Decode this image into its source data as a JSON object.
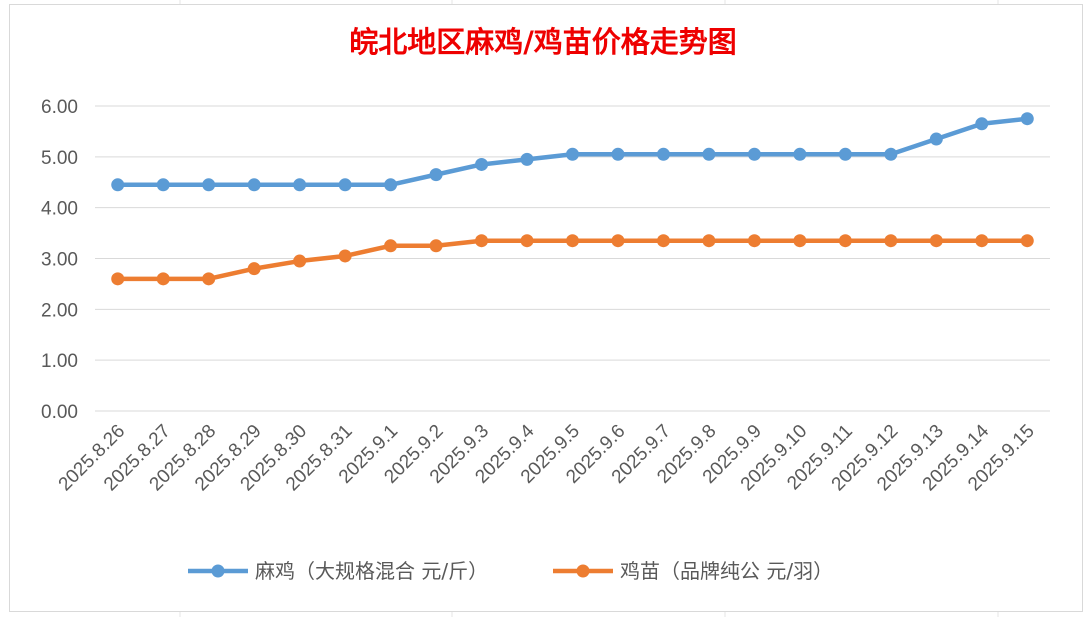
{
  "chart_data": {
    "type": "line",
    "title": "皖北地区麻鸡/鸡苗价格走势图",
    "categories": [
      "2025.8.26",
      "2025.8.27",
      "2025.8.28",
      "2025.8.29",
      "2025.8.30",
      "2025.8.31",
      "2025.9.1",
      "2025.9.2",
      "2025.9.3",
      "2025.9.4",
      "2025.9.5",
      "2025.9.6",
      "2025.9.7",
      "2025.9.8",
      "2025.9.9",
      "2025.9.10",
      "2025.9.11",
      "2025.9.12",
      "2025.9.13",
      "2025.9.14",
      "2025.9.15"
    ],
    "series": [
      {
        "name": "麻鸡（大规格混合 元/斤）",
        "color": "#5b9bd5",
        "values": [
          4.45,
          4.45,
          4.45,
          4.45,
          4.45,
          4.45,
          4.45,
          4.65,
          4.85,
          4.95,
          5.05,
          5.05,
          5.05,
          5.05,
          5.05,
          5.05,
          5.05,
          5.05,
          5.35,
          5.65,
          5.75
        ]
      },
      {
        "name": "鸡苗（品牌纯公 元/羽）",
        "color": "#ed7d31",
        "values": [
          2.6,
          2.6,
          2.6,
          2.8,
          2.95,
          3.05,
          3.25,
          3.25,
          3.35,
          3.35,
          3.35,
          3.35,
          3.35,
          3.35,
          3.35,
          3.35,
          3.35,
          3.35,
          3.35,
          3.35,
          3.35
        ]
      }
    ],
    "yticks": [
      "0.00",
      "1.00",
      "2.00",
      "3.00",
      "4.00",
      "5.00",
      "6.00"
    ],
    "ylim": [
      0,
      6
    ],
    "grid": true,
    "legend_position": "bottom",
    "title_color": "#ee0000"
  }
}
